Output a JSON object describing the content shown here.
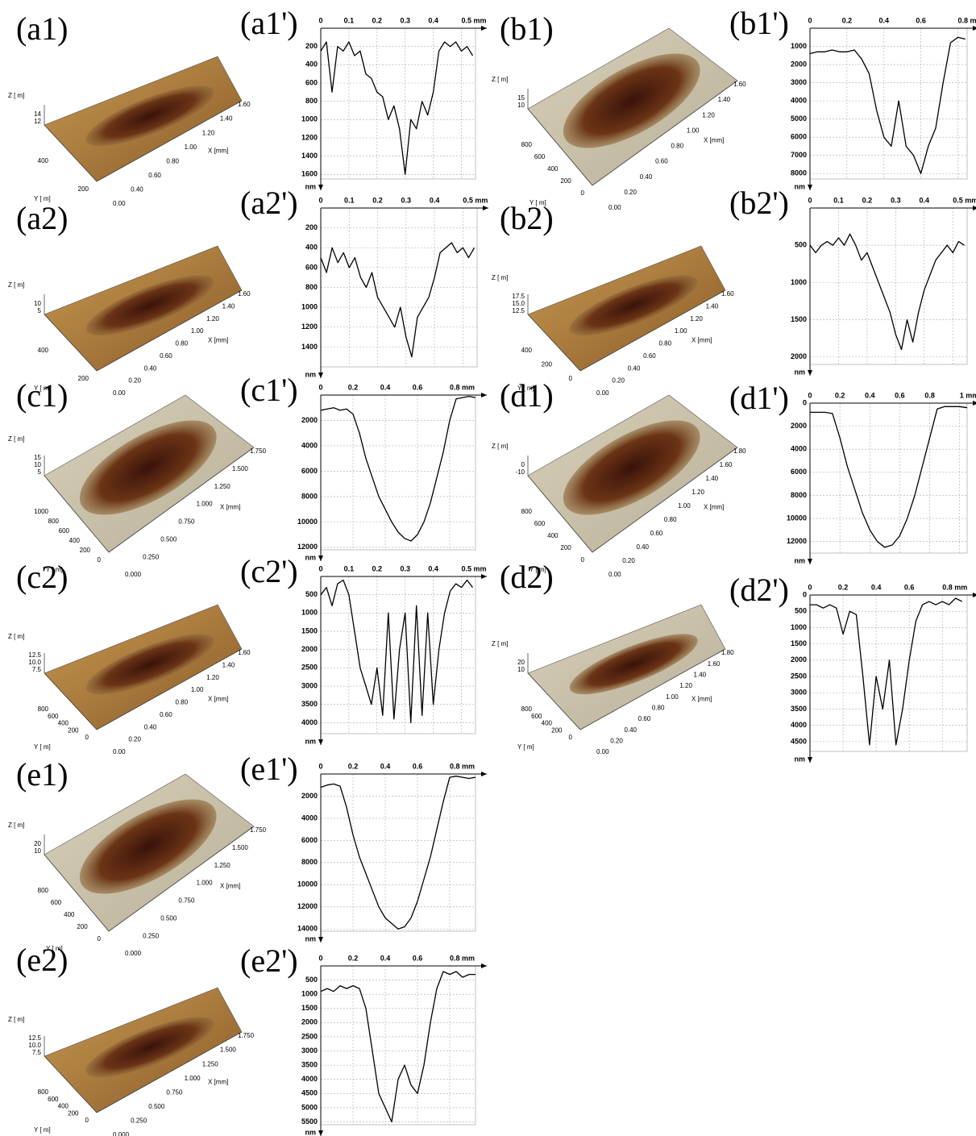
{
  "chart_data": [
    {
      "type": "line",
      "title": "(a1')",
      "ylabel": "nm",
      "y_reversed": true,
      "grid": true,
      "xlim": [
        0,
        0.55
      ],
      "xticks": [
        0,
        0.1,
        0.2,
        0.3,
        0.4,
        {
          "value": 0.5,
          "label": "0.5 mm"
        }
      ],
      "ylim": [
        0,
        1650
      ],
      "yticks": [
        200,
        400,
        600,
        800,
        1000,
        1200,
        1400,
        1600
      ],
      "x": [
        0,
        0.02,
        0.04,
        0.06,
        0.08,
        0.1,
        0.12,
        0.14,
        0.16,
        0.18,
        0.2,
        0.22,
        0.24,
        0.26,
        0.28,
        0.3,
        0.32,
        0.34,
        0.36,
        0.38,
        0.4,
        0.42,
        0.44,
        0.46,
        0.48,
        0.5,
        0.52,
        0.54
      ],
      "color": "#000000",
      "values": [
        250,
        150,
        700,
        200,
        250,
        150,
        300,
        250,
        500,
        550,
        700,
        750,
        1000,
        850,
        1100,
        1600,
        1000,
        1100,
        800,
        950,
        700,
        250,
        150,
        200,
        150,
        250,
        200,
        300
      ]
    },
    {
      "type": "line",
      "title": "(b1')",
      "ylabel": "nm",
      "y_reversed": true,
      "grid": true,
      "xlim": [
        0,
        0.85
      ],
      "xticks": [
        0,
        0.2,
        0.4,
        0.6,
        {
          "value": 0.8,
          "label": "0.8 mm"
        }
      ],
      "ylim": [
        0,
        8300
      ],
      "yticks": [
        1000,
        2000,
        3000,
        4000,
        5000,
        6000,
        7000,
        8000
      ],
      "x": [
        0,
        0.04,
        0.08,
        0.12,
        0.16,
        0.2,
        0.24,
        0.28,
        0.32,
        0.36,
        0.4,
        0.44,
        0.48,
        0.52,
        0.56,
        0.6,
        0.64,
        0.68,
        0.72,
        0.76,
        0.8,
        0.84
      ],
      "color": "#000000",
      "values": [
        1400,
        1300,
        1300,
        1200,
        1300,
        1300,
        1200,
        1700,
        2500,
        4500,
        6000,
        6500,
        4000,
        6500,
        7000,
        8000,
        6500,
        5500,
        3000,
        800,
        500,
        600
      ]
    },
    {
      "type": "line",
      "title": "(a2')",
      "ylabel": "nm",
      "y_reversed": true,
      "grid": true,
      "xlim": [
        0,
        0.55
      ],
      "xticks": [
        0,
        0.1,
        0.2,
        0.3,
        0.4,
        {
          "value": 0.5,
          "label": "0.5 mm"
        }
      ],
      "ylim": [
        0,
        1600
      ],
      "yticks": [
        200,
        400,
        600,
        800,
        1000,
        1200,
        1400
      ],
      "x": [
        0,
        0.02,
        0.04,
        0.06,
        0.08,
        0.1,
        0.12,
        0.14,
        0.16,
        0.18,
        0.2,
        0.22,
        0.24,
        0.26,
        0.28,
        0.3,
        0.32,
        0.34,
        0.36,
        0.38,
        0.4,
        0.42,
        0.44,
        0.46,
        0.48,
        0.5,
        0.52,
        0.54
      ],
      "color": "#000000",
      "values": [
        500,
        650,
        400,
        550,
        450,
        600,
        500,
        700,
        800,
        650,
        900,
        1000,
        1100,
        1200,
        1000,
        1300,
        1500,
        1100,
        1000,
        900,
        700,
        450,
        400,
        350,
        450,
        400,
        500,
        400
      ]
    },
    {
      "type": "line",
      "title": "(b2')",
      "ylabel": "nm",
      "y_reversed": true,
      "grid": true,
      "xlim": [
        0,
        0.55
      ],
      "xticks": [
        0,
        0.1,
        0.2,
        0.3,
        0.4,
        {
          "value": 0.5,
          "label": "0.5 mm"
        }
      ],
      "ylim": [
        0,
        2100
      ],
      "yticks": [
        500,
        1000,
        1500,
        2000
      ],
      "x": [
        0,
        0.02,
        0.04,
        0.06,
        0.08,
        0.1,
        0.12,
        0.14,
        0.16,
        0.18,
        0.2,
        0.22,
        0.24,
        0.26,
        0.28,
        0.3,
        0.32,
        0.34,
        0.36,
        0.38,
        0.4,
        0.42,
        0.44,
        0.46,
        0.48,
        0.5,
        0.52,
        0.54
      ],
      "color": "#000000",
      "values": [
        500,
        600,
        500,
        450,
        500,
        400,
        500,
        350,
        500,
        700,
        600,
        800,
        1000,
        1200,
        1400,
        1700,
        1900,
        1500,
        1800,
        1400,
        1100,
        900,
        700,
        600,
        500,
        600,
        450,
        500
      ]
    },
    {
      "type": "line",
      "title": "(c1')",
      "ylabel": "nm",
      "y_reversed": true,
      "grid": true,
      "xlim": [
        0,
        0.96
      ],
      "xticks": [
        0,
        0.2,
        0.4,
        0.6,
        {
          "value": 0.8,
          "label": "0.8 mm"
        }
      ],
      "ylim": [
        0,
        12200
      ],
      "yticks": [
        2000,
        4000,
        6000,
        8000,
        10000,
        12000
      ],
      "x": [
        0,
        0.04,
        0.08,
        0.12,
        0.16,
        0.2,
        0.24,
        0.28,
        0.32,
        0.36,
        0.4,
        0.44,
        0.48,
        0.52,
        0.56,
        0.6,
        0.64,
        0.68,
        0.72,
        0.76,
        0.8,
        0.84,
        0.88,
        0.92,
        0.96
      ],
      "color": "#000000",
      "values": [
        1200,
        1100,
        1000,
        1200,
        1100,
        1500,
        3000,
        5000,
        6500,
        8000,
        9000,
        10000,
        10800,
        11300,
        11500,
        11000,
        10000,
        8500,
        6500,
        4500,
        2000,
        300,
        200,
        100,
        200
      ]
    },
    {
      "type": "line",
      "title": "(d1')",
      "ylabel": "nm",
      "y_reversed": true,
      "grid": true,
      "xlim": [
        0,
        1.05
      ],
      "xticks": [
        0,
        0.2,
        0.4,
        0.6,
        0.8,
        {
          "value": 1,
          "label": "1 mm"
        }
      ],
      "ylim": [
        0,
        13000
      ],
      "yticks": [
        0,
        2000,
        4000,
        6000,
        8000,
        10000,
        12000
      ],
      "x": [
        0,
        0.05,
        0.1,
        0.15,
        0.2,
        0.25,
        0.3,
        0.35,
        0.4,
        0.45,
        0.5,
        0.55,
        0.6,
        0.65,
        0.7,
        0.75,
        0.8,
        0.85,
        0.9,
        0.95,
        1,
        1.05
      ],
      "color": "#000000",
      "values": [
        800,
        800,
        800,
        900,
        3000,
        5500,
        7500,
        9500,
        11000,
        12000,
        12500,
        12300,
        11500,
        10000,
        8000,
        5500,
        3000,
        500,
        300,
        300,
        300,
        400
      ]
    },
    {
      "type": "line",
      "title": "(c2')",
      "ylabel": "nm",
      "y_reversed": true,
      "grid": true,
      "xlim": [
        0,
        0.55
      ],
      "xticks": [
        0,
        0.1,
        0.2,
        0.3,
        0.4,
        {
          "value": 0.5,
          "label": "0.5 mm"
        }
      ],
      "ylim": [
        0,
        4300
      ],
      "yticks": [
        500,
        1000,
        1500,
        2000,
        2500,
        3000,
        3500,
        4000
      ],
      "x": [
        0,
        0.02,
        0.04,
        0.06,
        0.08,
        0.1,
        0.12,
        0.14,
        0.16,
        0.18,
        0.2,
        0.22,
        0.24,
        0.26,
        0.28,
        0.3,
        0.32,
        0.34,
        0.36,
        0.38,
        0.4,
        0.42,
        0.44,
        0.46,
        0.48,
        0.5,
        0.52,
        0.54
      ],
      "color": "#000000",
      "values": [
        500,
        300,
        800,
        200,
        100,
        500,
        1500,
        2500,
        3000,
        3500,
        2500,
        3800,
        1000,
        3900,
        2000,
        1000,
        4000,
        800,
        3800,
        1000,
        3500,
        2000,
        1000,
        400,
        200,
        300,
        100,
        300
      ]
    },
    {
      "type": "line",
      "title": "(d2')",
      "ylabel": "nm",
      "y_reversed": true,
      "grid": true,
      "xlim": [
        0,
        0.95
      ],
      "xticks": [
        0,
        0.2,
        0.4,
        0.6,
        {
          "value": 0.8,
          "label": "0.8 mm"
        }
      ],
      "ylim": [
        0,
        4800
      ],
      "yticks": [
        0,
        500,
        1000,
        1500,
        2000,
        2500,
        3000,
        3500,
        4000,
        4500
      ],
      "x": [
        0,
        0.04,
        0.08,
        0.12,
        0.16,
        0.2,
        0.24,
        0.28,
        0.32,
        0.36,
        0.4,
        0.44,
        0.48,
        0.52,
        0.56,
        0.6,
        0.64,
        0.68,
        0.72,
        0.76,
        0.8,
        0.84,
        0.88,
        0.92
      ],
      "color": "#000000",
      "values": [
        300,
        300,
        400,
        300,
        400,
        1200,
        500,
        600,
        2500,
        4600,
        2500,
        3500,
        2000,
        4600,
        3500,
        2000,
        800,
        300,
        200,
        300,
        200,
        300,
        100,
        200
      ]
    },
    {
      "type": "line",
      "title": "(e1')",
      "ylabel": "nm",
      "y_reversed": true,
      "grid": true,
      "xlim": [
        0,
        0.96
      ],
      "xticks": [
        0,
        0.2,
        0.4,
        0.6,
        {
          "value": 0.8,
          "label": "0.8 mm"
        }
      ],
      "ylim": [
        0,
        14200
      ],
      "yticks": [
        2000,
        4000,
        6000,
        8000,
        10000,
        12000,
        14000
      ],
      "x": [
        0,
        0.04,
        0.08,
        0.12,
        0.16,
        0.2,
        0.24,
        0.28,
        0.32,
        0.36,
        0.4,
        0.44,
        0.48,
        0.52,
        0.56,
        0.6,
        0.64,
        0.68,
        0.72,
        0.76,
        0.8,
        0.84,
        0.88,
        0.92,
        0.96
      ],
      "color": "#000000",
      "values": [
        1200,
        1000,
        900,
        1100,
        3000,
        5500,
        7500,
        9000,
        10500,
        12000,
        13000,
        13500,
        14000,
        13800,
        13000,
        11500,
        9500,
        7500,
        5000,
        2500,
        300,
        200,
        300,
        400,
        300
      ]
    },
    {
      "type": "line",
      "title": "(e2')",
      "ylabel": "nm",
      "y_reversed": true,
      "grid": true,
      "xlim": [
        0,
        0.96
      ],
      "xticks": [
        0,
        0.2,
        0.4,
        0.6,
        {
          "value": 0.8,
          "label": "0.8 mm"
        }
      ],
      "ylim": [
        0,
        5600
      ],
      "yticks": [
        500,
        1000,
        1500,
        2000,
        2500,
        3000,
        3500,
        4000,
        4500,
        5000,
        5500
      ],
      "x": [
        0,
        0.04,
        0.08,
        0.12,
        0.16,
        0.2,
        0.24,
        0.28,
        0.32,
        0.36,
        0.4,
        0.44,
        0.48,
        0.52,
        0.56,
        0.6,
        0.64,
        0.68,
        0.72,
        0.76,
        0.8,
        0.84,
        0.88,
        0.92,
        0.96
      ],
      "color": "#000000",
      "values": [
        900,
        800,
        900,
        700,
        800,
        700,
        800,
        1500,
        3000,
        4500,
        5000,
        5500,
        4000,
        3500,
        4200,
        4500,
        3500,
        2000,
        800,
        200,
        300,
        200,
        400,
        300,
        300
      ]
    }
  ],
  "surfaces": [
    {
      "label": "(a1)",
      "zlabel": "Z [ m]",
      "ylabel": "Y [ m]",
      "xlabel": "X [mm]",
      "zticks": [
        "14",
        "12"
      ],
      "yticks": [
        "400",
        "200"
      ],
      "xticks": [
        "0.00",
        "0.40",
        "0.60",
        "0.80",
        "1.00",
        "1.20",
        "1.40",
        "1.60"
      ]
    },
    {
      "label": "(b1)",
      "zlabel": "Z [ m]",
      "ylabel": "Y [ m]",
      "xlabel": "X [mm]",
      "zticks": [
        "15",
        "10"
      ],
      "yticks": [
        "800",
        "600",
        "400",
        "200",
        "0"
      ],
      "xticks": [
        "0.00",
        "0.20",
        "0.40",
        "0.60",
        "0.80",
        "1.00",
        "1.20",
        "1.40",
        "1.60"
      ]
    },
    {
      "label": "(a2)",
      "zlabel": "Z [ m]",
      "ylabel": "Y [ m]",
      "xlabel": "X [mm]",
      "zticks": [
        "10",
        "5"
      ],
      "yticks": [
        "400",
        "200"
      ],
      "xticks": [
        "0.00",
        "0.20",
        "0.40",
        "0.60",
        "0.80",
        "1.00",
        "1.20",
        "1.40",
        "1.60"
      ]
    },
    {
      "label": "(b2)",
      "zlabel": "Z [ m]",
      "ylabel": "Y [ m]",
      "xlabel": "X [mm]",
      "zticks": [
        "17.5",
        "15.0",
        "12.5"
      ],
      "yticks": [
        "400",
        "200",
        "0"
      ],
      "xticks": [
        "0.00",
        "0.20",
        "0.40",
        "0.60",
        "0.80",
        "1.00",
        "1.20",
        "1.40",
        "1.60"
      ]
    },
    {
      "label": "(c1)",
      "zlabel": "Z [ m]",
      "ylabel": "Y [ m]",
      "xlabel": "X [mm]",
      "zticks": [
        "15",
        "10",
        "5"
      ],
      "yticks": [
        "1000",
        "800",
        "600",
        "400",
        "200",
        "0"
      ],
      "xticks": [
        "0.000",
        "0.250",
        "0.500",
        "0.750",
        "1.000",
        "1.250",
        "1.500",
        "1.750"
      ]
    },
    {
      "label": "(d1)",
      "zlabel": "Z [ m]",
      "ylabel": "Y [ m]",
      "xlabel": "X [mm]",
      "zticks": [
        "0",
        "-10"
      ],
      "yticks": [
        "800",
        "600",
        "400",
        "200",
        "0"
      ],
      "xticks": [
        "0.00",
        "0.20",
        "0.40",
        "0.60",
        "0.80",
        "1.00",
        "1.20",
        "1.40",
        "1.60",
        "1.80"
      ]
    },
    {
      "label": "(c2)",
      "zlabel": "Z [ m]",
      "ylabel": "Y [ m]",
      "xlabel": "X [mm]",
      "zticks": [
        "12.5",
        "10.0",
        "7.5"
      ],
      "yticks": [
        "800",
        "600",
        "400",
        "200",
        "0"
      ],
      "xticks": [
        "0.00",
        "0.20",
        "0.40",
        "0.60",
        "0.80",
        "1.00",
        "1.20",
        "1.40",
        "1.60"
      ]
    },
    {
      "label": "(d2)",
      "zlabel": "Z [ m]",
      "ylabel": "Y [ m]",
      "xlabel": "X [mm]",
      "zticks": [
        "20",
        "10"
      ],
      "yticks": [
        "800",
        "600",
        "400",
        "200",
        "0"
      ],
      "xticks": [
        "0.00",
        "0.20",
        "0.40",
        "0.60",
        "0.80",
        "1.00",
        "1.20",
        "1.40",
        "1.60",
        "1.80"
      ]
    },
    {
      "label": "(e1)",
      "zlabel": "Z [ m]",
      "ylabel": "Y [ m]",
      "xlabel": "X [mm]",
      "zticks": [
        "20",
        "10"
      ],
      "yticks": [
        "800",
        "600",
        "400",
        "200",
        "0"
      ],
      "xticks": [
        "0.000",
        "0.250",
        "0.500",
        "0.750",
        "1.000",
        "1.250",
        "1.500",
        "1.750"
      ]
    },
    {
      "label": "(e2)",
      "zlabel": "Z [ m]",
      "ylabel": "Y [ m]",
      "xlabel": "X [mm]",
      "zticks": [
        "12.5",
        "10.0",
        "7.5"
      ],
      "yticks": [
        "800",
        "600",
        "400",
        "200",
        "0"
      ],
      "xticks": [
        "0.000",
        "0.250",
        "0.500",
        "0.750",
        "1.000",
        "1.250",
        "1.500",
        "1.750"
      ]
    }
  ]
}
